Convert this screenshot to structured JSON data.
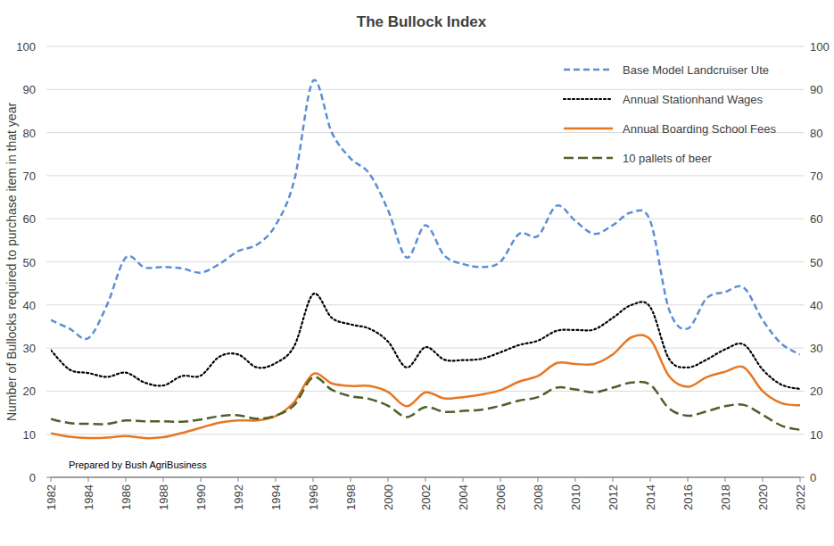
{
  "chart_data": {
    "type": "line",
    "title": "The Bullock Index",
    "y_label": "Number of Bullocks required to purchase item in that year",
    "annotation": "Prepared by Bush AgriBusiness",
    "x": [
      1982,
      1983,
      1984,
      1985,
      1986,
      1987,
      1988,
      1989,
      1990,
      1991,
      1992,
      1993,
      1994,
      1995,
      1996,
      1997,
      1998,
      1999,
      2000,
      2001,
      2002,
      2003,
      2004,
      2005,
      2006,
      2007,
      2008,
      2009,
      2010,
      2011,
      2012,
      2013,
      2014,
      2015,
      2016,
      2017,
      2018,
      2019,
      2020,
      2021,
      2022
    ],
    "xlim": [
      1982,
      2022
    ],
    "xticks": [
      1982,
      1984,
      1986,
      1988,
      1990,
      1992,
      1994,
      1996,
      1998,
      2000,
      2002,
      2004,
      2006,
      2008,
      2010,
      2012,
      2014,
      2016,
      2018,
      2020,
      2022
    ],
    "ylim": [
      0,
      100
    ],
    "yticks": [
      0,
      10,
      20,
      30,
      40,
      50,
      60,
      70,
      80,
      90,
      100
    ],
    "y2lim": [
      0,
      100
    ],
    "y2ticks": [
      0,
      10,
      20,
      30,
      40,
      50,
      60,
      70,
      80,
      90,
      100
    ],
    "grid": true,
    "legend": "top-right",
    "series": [
      {
        "name": "Base Model Landcruiser Ute",
        "color": "#5b8fd4",
        "line_style": "dashed",
        "values": [
          36.5,
          34.5,
          32.3,
          40,
          51,
          48.7,
          48.8,
          48.5,
          47.5,
          49.5,
          52.5,
          54,
          58.5,
          69,
          92,
          80,
          74,
          70.5,
          62,
          51,
          58.5,
          51.5,
          49.5,
          48.8,
          50,
          56.5,
          56,
          63,
          59.5,
          56.5,
          58.5,
          61.5,
          59.5,
          39,
          34.5,
          41.5,
          43,
          44,
          36.5,
          31,
          28.5
        ]
      },
      {
        "name": "Annual Stationhand Wages",
        "color": "#000000",
        "line_style": "dotted",
        "values": [
          29.5,
          25,
          24.2,
          23.3,
          24.3,
          22,
          21.3,
          23.5,
          23.6,
          28,
          28.5,
          25.5,
          26.5,
          30.5,
          42.5,
          37,
          35.5,
          34.5,
          31.5,
          25.5,
          30.2,
          27.3,
          27.2,
          27.5,
          29,
          30.7,
          31.7,
          34,
          34.2,
          34.3,
          37,
          40,
          39.5,
          27.5,
          25.5,
          27.3,
          29.7,
          30.8,
          25,
          21.5,
          20.5
        ]
      },
      {
        "name": "Annual Boarding School Fees",
        "color": "#e87722",
        "line_style": "solid",
        "values": [
          10.2,
          9.4,
          9.1,
          9.2,
          9.6,
          9.1,
          9.3,
          10.3,
          11.5,
          12.7,
          13.2,
          13.2,
          14.2,
          17.5,
          24,
          21.8,
          21.2,
          21.2,
          19.8,
          16.5,
          19.7,
          18.3,
          18.6,
          19.2,
          20.2,
          22.2,
          23.5,
          26.5,
          26.3,
          26.3,
          28.5,
          32.5,
          32,
          23.5,
          21,
          23.2,
          24.5,
          25.5,
          20,
          17.2,
          16.7
        ]
      },
      {
        "name": "10 pallets of beer",
        "color": "#4f5f2a",
        "line_style": "longdash",
        "values": [
          13.5,
          12.6,
          12.4,
          12.4,
          13.2,
          13,
          13,
          12.9,
          13.4,
          14.2,
          14.4,
          13.6,
          14.3,
          16.8,
          23.2,
          20.3,
          18.8,
          18.2,
          16.6,
          14,
          16.3,
          15.2,
          15.4,
          15.7,
          16.6,
          17.8,
          18.6,
          20.8,
          20.4,
          19.7,
          20.8,
          22,
          21.5,
          16,
          14.3,
          15.3,
          16.5,
          16.8,
          14.5,
          12,
          11
        ]
      }
    ]
  }
}
